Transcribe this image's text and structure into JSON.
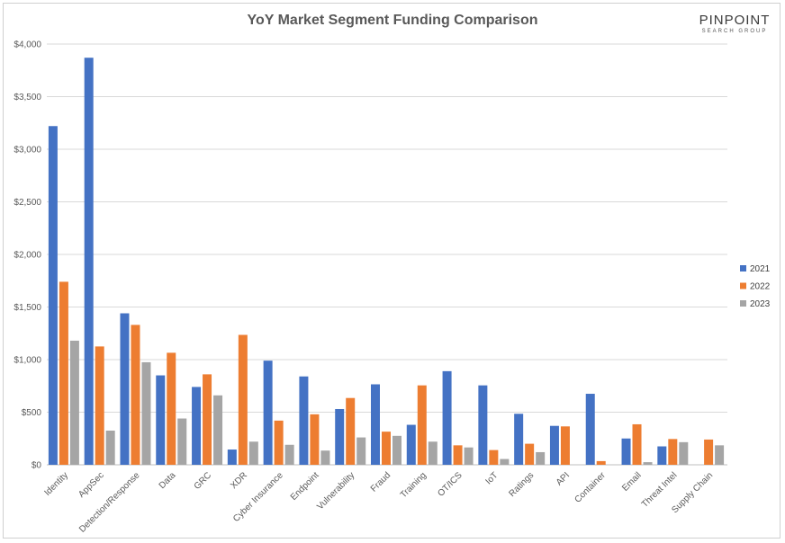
{
  "chart_data": {
    "type": "bar",
    "title": "YoY Market Segment Funding Comparison",
    "logo": {
      "text": "PINPOINT",
      "subtext": "SEARCH GROUP"
    },
    "categories": [
      "Identity",
      "AppSec",
      "Detection/Response",
      "Data",
      "GRC",
      "XDR",
      "Cyber Insurance",
      "Endpoint",
      "Vulnerability",
      "Fraud",
      "Training",
      "OT/ICS",
      "IoT",
      "Ratings",
      "API",
      "Container",
      "Email",
      "Threat Intel",
      "Supply Chain"
    ],
    "series": [
      {
        "name": "2021",
        "color": "#4472c4",
        "values": [
          3220,
          3870,
          1440,
          850,
          740,
          145,
          990,
          840,
          530,
          765,
          380,
          890,
          755,
          485,
          370,
          675,
          250,
          175,
          0
        ]
      },
      {
        "name": "2022",
        "color": "#ed7d31",
        "values": [
          1740,
          1125,
          1330,
          1065,
          860,
          1235,
          420,
          480,
          635,
          315,
          755,
          185,
          140,
          200,
          365,
          35,
          385,
          245,
          240
        ]
      },
      {
        "name": "2023",
        "color": "#a5a5a5",
        "values": [
          1180,
          325,
          975,
          440,
          660,
          220,
          190,
          135,
          260,
          275,
          220,
          165,
          55,
          120,
          0,
          0,
          25,
          215,
          185
        ]
      }
    ],
    "y_ticks": [
      "$0",
      "$500",
      "$1,000",
      "$1,500",
      "$2,000",
      "$2,500",
      "$3,000",
      "$3,500",
      "$4,000"
    ],
    "ylim": [
      0,
      4000
    ],
    "grid": true,
    "legend_position": "right"
  }
}
